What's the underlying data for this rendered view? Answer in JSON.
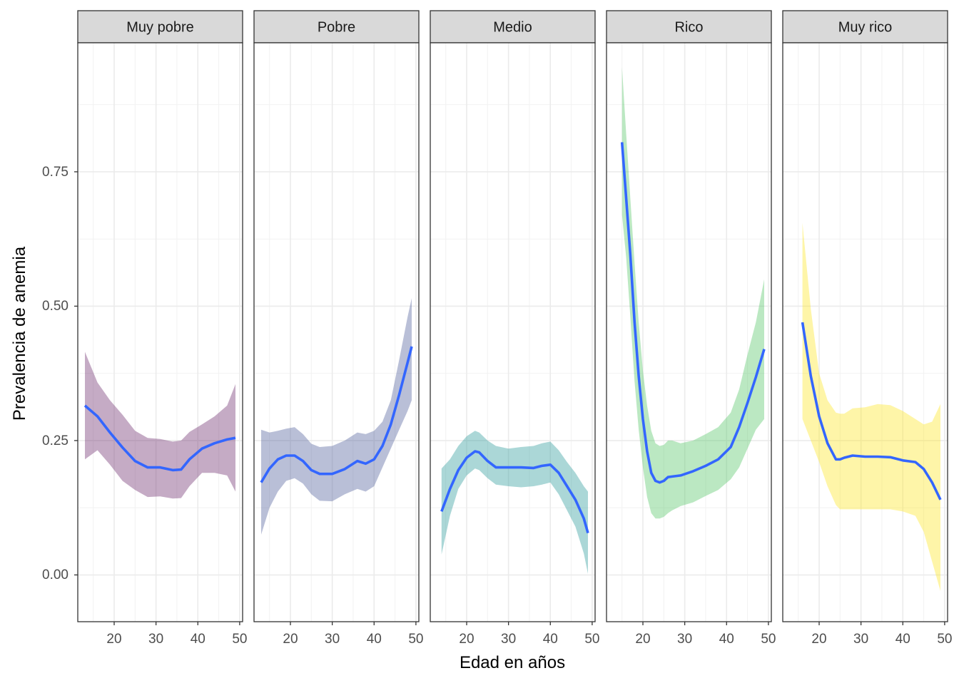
{
  "chart_data": {
    "type": "line",
    "facet_strips": [
      "Muy pobre",
      "Pobre",
      "Medio",
      "Rico",
      "Muy rico"
    ],
    "xlabel": "Edad en años",
    "ylabel": "Prevalencia de anemia",
    "x_ticks": [
      "20",
      "30",
      "40",
      "50"
    ],
    "y_ticks": [
      "0.00",
      "0.25",
      "0.50",
      "0.75"
    ],
    "line_color": "#3366FF",
    "panels": [
      {
        "name": "Muy pobre",
        "fill": "#6E2C6E",
        "x": [
          13,
          16,
          19,
          22,
          25,
          28,
          31,
          34,
          36,
          38,
          41,
          44,
          47,
          49
        ],
        "y": [
          0.315,
          0.295,
          0.265,
          0.237,
          0.212,
          0.2,
          0.2,
          0.195,
          0.196,
          0.215,
          0.235,
          0.245,
          0.252,
          0.255
        ],
        "lower": [
          0.215,
          0.232,
          0.205,
          0.175,
          0.158,
          0.145,
          0.146,
          0.142,
          0.143,
          0.165,
          0.19,
          0.19,
          0.185,
          0.155
        ],
        "upper": [
          0.415,
          0.358,
          0.325,
          0.298,
          0.268,
          0.255,
          0.253,
          0.248,
          0.25,
          0.266,
          0.28,
          0.295,
          0.315,
          0.355
        ]
      },
      {
        "name": "Pobre",
        "fill": "#50609A",
        "x": [
          13,
          15,
          17,
          19,
          21,
          23,
          25,
          27,
          30,
          33,
          36,
          38,
          40,
          42,
          44,
          46,
          48,
          49
        ],
        "y": [
          0.172,
          0.198,
          0.215,
          0.222,
          0.222,
          0.212,
          0.195,
          0.188,
          0.188,
          0.197,
          0.212,
          0.207,
          0.215,
          0.24,
          0.28,
          0.335,
          0.395,
          0.425
        ],
        "lower": [
          0.075,
          0.125,
          0.155,
          0.175,
          0.18,
          0.17,
          0.15,
          0.138,
          0.137,
          0.15,
          0.16,
          0.155,
          0.165,
          0.2,
          0.235,
          0.27,
          0.305,
          0.325
        ],
        "upper": [
          0.27,
          0.265,
          0.268,
          0.272,
          0.275,
          0.262,
          0.244,
          0.238,
          0.24,
          0.25,
          0.265,
          0.262,
          0.268,
          0.285,
          0.325,
          0.4,
          0.48,
          0.515
        ]
      },
      {
        "name": "Medio",
        "fill": "#2E9A9A",
        "x": [
          14,
          16,
          18,
          20,
          22,
          23,
          25,
          27,
          30,
          33,
          36,
          38,
          40,
          42,
          44,
          46,
          48,
          49
        ],
        "y": [
          0.118,
          0.16,
          0.195,
          0.218,
          0.23,
          0.228,
          0.212,
          0.2,
          0.2,
          0.2,
          0.199,
          0.203,
          0.205,
          0.19,
          0.165,
          0.14,
          0.105,
          0.078
        ],
        "lower": [
          0.038,
          0.11,
          0.16,
          0.185,
          0.198,
          0.195,
          0.18,
          0.168,
          0.165,
          0.163,
          0.165,
          0.168,
          0.172,
          0.15,
          0.12,
          0.09,
          0.04,
          0.002
        ],
        "upper": [
          0.198,
          0.215,
          0.24,
          0.258,
          0.268,
          0.265,
          0.25,
          0.24,
          0.235,
          0.238,
          0.24,
          0.245,
          0.248,
          0.232,
          0.21,
          0.19,
          0.165,
          0.155
        ]
      },
      {
        "name": "Rico",
        "fill": "#55C667",
        "x": [
          15,
          16,
          17,
          18,
          19,
          20,
          21,
          22,
          23,
          24,
          25,
          26,
          27,
          29,
          32,
          35,
          38,
          41,
          43,
          45,
          47,
          49
        ],
        "y": [
          0.805,
          0.7,
          0.595,
          0.47,
          0.37,
          0.29,
          0.23,
          0.19,
          0.175,
          0.172,
          0.175,
          0.182,
          0.183,
          0.185,
          0.193,
          0.203,
          0.215,
          0.238,
          0.275,
          0.32,
          0.368,
          0.42
        ],
        "lower": [
          0.67,
          0.59,
          0.48,
          0.36,
          0.27,
          0.2,
          0.145,
          0.115,
          0.105,
          0.105,
          0.108,
          0.115,
          0.12,
          0.128,
          0.135,
          0.147,
          0.158,
          0.178,
          0.2,
          0.235,
          0.27,
          0.29
        ],
        "upper": [
          0.945,
          0.82,
          0.7,
          0.58,
          0.47,
          0.38,
          0.315,
          0.268,
          0.245,
          0.24,
          0.242,
          0.25,
          0.25,
          0.245,
          0.25,
          0.262,
          0.275,
          0.302,
          0.345,
          0.41,
          0.47,
          0.55
        ]
      },
      {
        "name": "Muy rico",
        "fill": "#FDE725",
        "x": [
          16,
          18,
          20,
          22,
          24,
          25,
          26,
          28,
          31,
          34,
          37,
          40,
          43,
          45,
          47,
          49
        ],
        "y": [
          0.47,
          0.37,
          0.295,
          0.245,
          0.215,
          0.215,
          0.218,
          0.222,
          0.22,
          0.22,
          0.219,
          0.213,
          0.21,
          0.197,
          0.172,
          0.14
        ],
        "lower": [
          0.29,
          0.25,
          0.21,
          0.165,
          0.13,
          0.122,
          0.122,
          0.122,
          0.122,
          0.122,
          0.122,
          0.118,
          0.11,
          0.08,
          0.025,
          -0.03
        ],
        "upper": [
          0.655,
          0.495,
          0.375,
          0.325,
          0.302,
          0.3,
          0.3,
          0.31,
          0.312,
          0.318,
          0.316,
          0.305,
          0.29,
          0.28,
          0.285,
          0.318
        ]
      }
    ],
    "ylim": [
      -0.087,
      0.99
    ],
    "xlim": [
      11.3,
      50.7
    ]
  }
}
